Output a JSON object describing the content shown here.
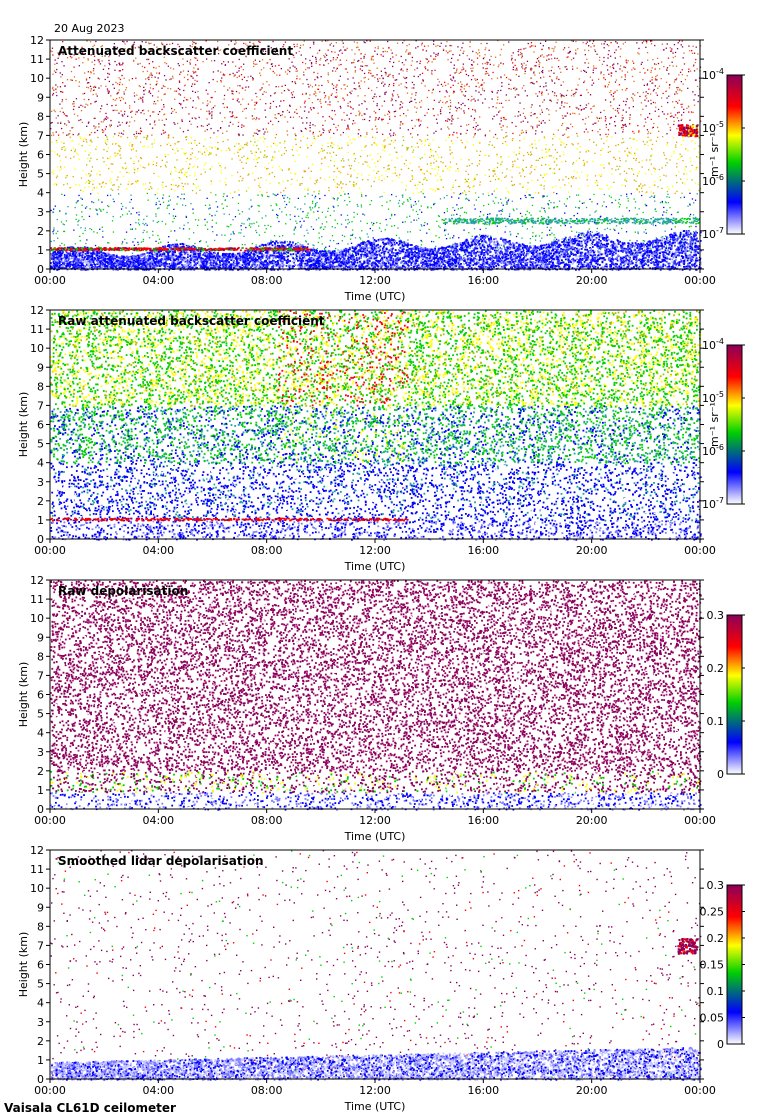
{
  "date": "20 Aug 2023",
  "footer": "Vaisala CL61D ceilometer",
  "chart_data": [
    {
      "type": "heatmap",
      "title": "Attenuated backscatter coefficient",
      "xlabel": "Time (UTC)",
      "ylabel": "Height (km)",
      "x_ticks": [
        "00:00",
        "04:00",
        "08:00",
        "12:00",
        "16:00",
        "20:00",
        "00:00"
      ],
      "y_ticks": [
        "0",
        "1",
        "2",
        "3",
        "4",
        "5",
        "6",
        "7",
        "8",
        "9",
        "10",
        "11",
        "12"
      ],
      "ylim": [
        0,
        12
      ],
      "colorbar": {
        "scale": "log",
        "ticks": [
          {
            "base": "10",
            "exp": "-4"
          },
          {
            "base": "10",
            "exp": "-5"
          },
          {
            "base": "10",
            "exp": "-6"
          },
          {
            "base": "10",
            "exp": "-7"
          }
        ],
        "unit": "m⁻¹ sr⁻¹"
      },
      "colors": [
        "#ffffff",
        "#0000ff",
        "#00d000",
        "#ffff00",
        "#ff0000",
        "#8b005a"
      ]
    },
    {
      "type": "heatmap",
      "title": "Raw attenuated backscatter coefficient",
      "xlabel": "Time (UTC)",
      "ylabel": "Height (km)",
      "x_ticks": [
        "00:00",
        "04:00",
        "08:00",
        "12:00",
        "16:00",
        "20:00",
        "00:00"
      ],
      "y_ticks": [
        "0",
        "1",
        "2",
        "3",
        "4",
        "5",
        "6",
        "7",
        "8",
        "9",
        "10",
        "11",
        "12"
      ],
      "ylim": [
        0,
        12
      ],
      "colorbar": {
        "scale": "log",
        "ticks": [
          {
            "base": "10",
            "exp": "-4"
          },
          {
            "base": "10",
            "exp": "-5"
          },
          {
            "base": "10",
            "exp": "-6"
          },
          {
            "base": "10",
            "exp": "-7"
          }
        ],
        "unit": "m⁻¹ sr⁻¹"
      },
      "colors": [
        "#ffffff",
        "#0000ff",
        "#00d000",
        "#ffff00",
        "#ff0000",
        "#8b005a"
      ]
    },
    {
      "type": "heatmap",
      "title": "Raw depolarisation",
      "xlabel": "Time (UTC)",
      "ylabel": "Height (km)",
      "x_ticks": [
        "00:00",
        "04:00",
        "08:00",
        "12:00",
        "16:00",
        "20:00",
        "00:00"
      ],
      "y_ticks": [
        "0",
        "1",
        "2",
        "3",
        "4",
        "5",
        "6",
        "7",
        "8",
        "9",
        "10",
        "11",
        "12"
      ],
      "ylim": [
        0,
        12
      ],
      "colorbar": {
        "scale": "linear",
        "range": [
          0,
          0.3
        ],
        "ticks": [
          "0.3",
          "0.2",
          "0.1",
          "0"
        ]
      },
      "colors": [
        "#ffffff",
        "#0000ff",
        "#00d000",
        "#ffff00",
        "#ff0000",
        "#8b005a"
      ]
    },
    {
      "type": "heatmap",
      "title": "Smoothed lidar depolarisation",
      "xlabel": "Time (UTC)",
      "ylabel": "Height (km)",
      "x_ticks": [
        "00:00",
        "04:00",
        "08:00",
        "12:00",
        "16:00",
        "20:00",
        "00:00"
      ],
      "y_ticks": [
        "0",
        "1",
        "2",
        "3",
        "4",
        "5",
        "6",
        "7",
        "8",
        "9",
        "10",
        "11",
        "12"
      ],
      "ylim": [
        0,
        12
      ],
      "colorbar": {
        "scale": "linear",
        "range": [
          0,
          0.3
        ],
        "ticks": [
          "0.3",
          "0.25",
          "0.2",
          "0.15",
          "0.1",
          "0.05",
          "0"
        ]
      },
      "colors": [
        "#ffffff",
        "#0000ff",
        "#00d000",
        "#ffff00",
        "#ff0000",
        "#8b005a"
      ]
    }
  ]
}
